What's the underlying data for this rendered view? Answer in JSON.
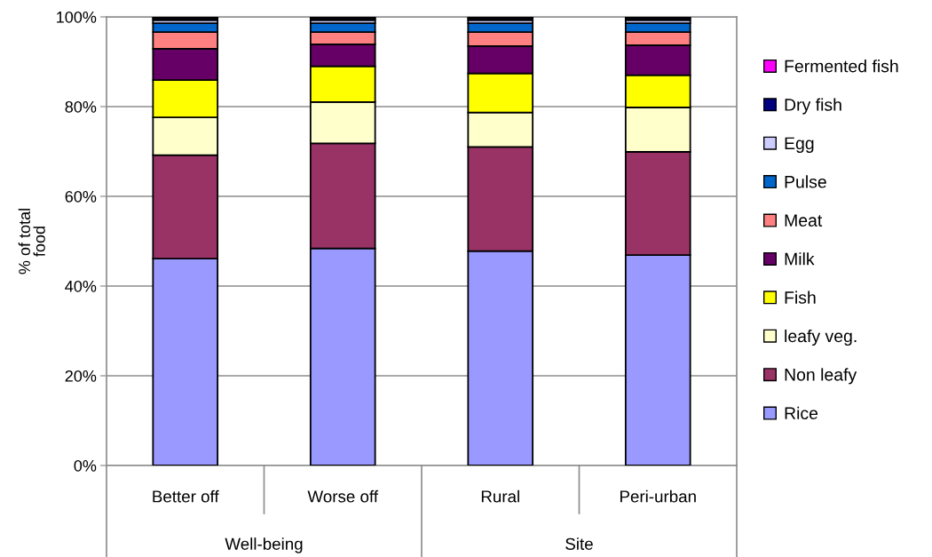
{
  "chart_data": {
    "type": "bar",
    "stacked": true,
    "ylabel": "% of total food",
    "categories": [
      "Better off",
      "Worse off",
      "Rural",
      "Peri-urban"
    ],
    "annotations": [
      "Well-being",
      "Site"
    ],
    "series": [
      {
        "name": "Rice",
        "color": "#9999ff",
        "values": [
          46.1,
          48.4,
          47.8,
          46.9
        ]
      },
      {
        "name": "Non leafy",
        "color": "#993366",
        "values": [
          23.1,
          23.4,
          23.2,
          23.0
        ]
      },
      {
        "name": "leafy veg.",
        "color": "#ffffcc",
        "values": [
          8.4,
          9.2,
          7.7,
          9.9
        ]
      },
      {
        "name": "Fish",
        "color": "#ffff00",
        "values": [
          8.3,
          8.0,
          8.7,
          7.2
        ]
      },
      {
        "name": "Milk",
        "color": "#660066",
        "values": [
          7.0,
          4.9,
          6.1,
          6.7
        ]
      },
      {
        "name": "Meat",
        "color": "#ff8080",
        "values": [
          3.7,
          2.7,
          3.1,
          2.9
        ]
      },
      {
        "name": "Pulse",
        "color": "#0066cc",
        "values": [
          2.0,
          2.0,
          2.0,
          2.0
        ]
      },
      {
        "name": "Egg",
        "color": "#ccccff",
        "values": [
          0.7,
          0.7,
          0.7,
          0.7
        ]
      },
      {
        "name": "Dry fish",
        "color": "#000080",
        "values": [
          0.4,
          0.4,
          0.4,
          0.4
        ]
      },
      {
        "name": "Fermented fish",
        "color": "#ff00ff",
        "values": [
          0.3,
          0.3,
          0.3,
          0.3
        ]
      }
    ],
    "ylim": [
      0,
      100
    ],
    "yticks": [
      {
        "value": 0,
        "label": "0%"
      },
      {
        "value": 20,
        "label": "20%"
      },
      {
        "value": 40,
        "label": "40%"
      },
      {
        "value": 60,
        "label": "60%"
      },
      {
        "value": 80,
        "label": "80%"
      },
      {
        "value": 100,
        "label": "100%"
      }
    ],
    "grid": "y",
    "legend": "right"
  }
}
